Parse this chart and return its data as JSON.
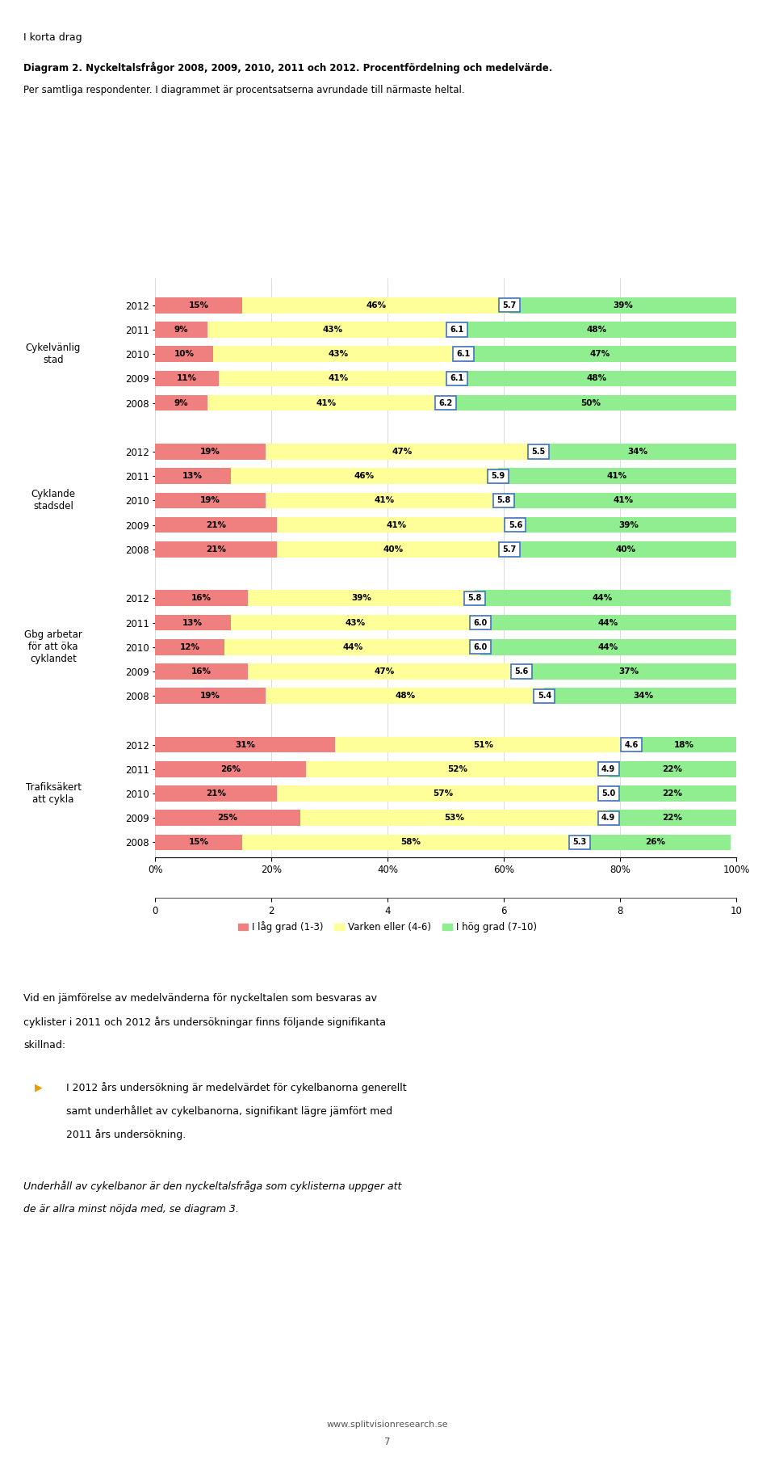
{
  "groups": [
    {
      "label": "Cykelvänlig\nstad",
      "years": [
        "2012",
        "2011",
        "2010",
        "2009",
        "2008"
      ],
      "low": [
        15,
        9,
        10,
        11,
        9
      ],
      "mid": [
        46,
        43,
        43,
        41,
        41
      ],
      "high": [
        39,
        48,
        47,
        48,
        50
      ],
      "mean": [
        5.7,
        6.1,
        6.1,
        6.1,
        6.2
      ]
    },
    {
      "label": "Cyklande\nstadsdel",
      "years": [
        "2012",
        "2011",
        "2010",
        "2009",
        "2008"
      ],
      "low": [
        19,
        13,
        19,
        21,
        21
      ],
      "mid": [
        47,
        46,
        41,
        41,
        40
      ],
      "high": [
        34,
        41,
        41,
        39,
        40
      ],
      "mean": [
        5.5,
        5.9,
        5.8,
        5.6,
        5.7
      ]
    },
    {
      "label": "Gbg arbetar\nför att öka\ncyklandet",
      "years": [
        "2012",
        "2011",
        "2010",
        "2009",
        "2008"
      ],
      "low": [
        16,
        13,
        12,
        16,
        19
      ],
      "mid": [
        39,
        43,
        44,
        47,
        48
      ],
      "high": [
        44,
        44,
        44,
        37,
        34
      ],
      "mean": [
        5.8,
        6.0,
        6.0,
        5.6,
        5.4
      ]
    },
    {
      "label": "Trafiksäkert\natt cykla",
      "years": [
        "2012",
        "2011",
        "2010",
        "2009",
        "2008"
      ],
      "low": [
        31,
        26,
        21,
        25,
        15
      ],
      "mid": [
        51,
        52,
        57,
        53,
        58
      ],
      "high": [
        18,
        22,
        22,
        22,
        26
      ],
      "mean": [
        4.6,
        4.9,
        5.0,
        4.9,
        5.3
      ]
    }
  ],
  "color_low": "#F08080",
  "color_mid": "#FFFF99",
  "color_high": "#90EE90",
  "color_mean_box": "#4472C4",
  "legend_labels": [
    "I låg grad (1-3)",
    "Varken eller (4-6)",
    "I hög grad (7-10)"
  ],
  "page_header": "I korta drag",
  "title_bold": "Diagram 2. Nyckeltalsfrågor 2008, 2009, 2010, 2011 och 2012. Procentfördelning och medelvärde.",
  "title_normal": "Per samtliga respondenter. I diagrammet är procentsatserna avrundade till närmaste heltal.",
  "footer_text": "www.splitvisionresearch.se",
  "page_number": "7"
}
